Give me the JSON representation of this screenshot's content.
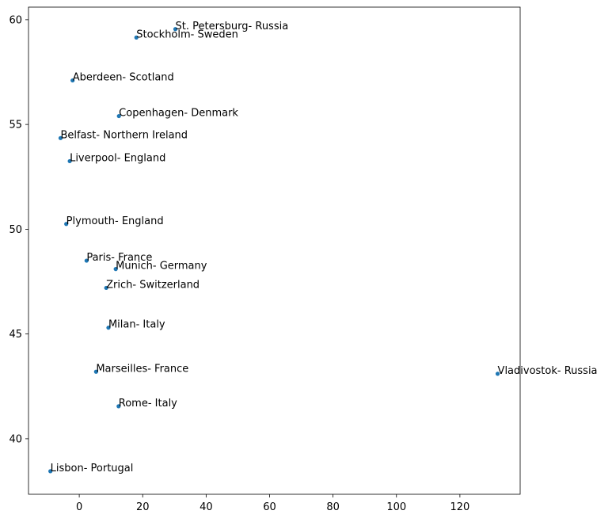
{
  "chart_data": {
    "type": "scatter",
    "title": "",
    "xlabel": "",
    "ylabel": "",
    "xlim": [
      -16,
      139
    ],
    "ylim": [
      37.35,
      60.6
    ],
    "xticks": [
      0,
      20,
      40,
      60,
      80,
      100,
      120
    ],
    "yticks": [
      40,
      45,
      50,
      55,
      60
    ],
    "grid": false,
    "legend": false,
    "marker_color": "#1f77b4",
    "points": [
      {
        "label": "St. Petersburg- Russia",
        "x": 30.3,
        "y": 59.55
      },
      {
        "label": "Stockholm- Sweden",
        "x": 18.0,
        "y": 59.15
      },
      {
        "label": "Aberdeen- Scotland",
        "x": -2.1,
        "y": 57.1
      },
      {
        "label": "Copenhagen- Denmark",
        "x": 12.5,
        "y": 55.4
      },
      {
        "label": "Belfast- Northern Ireland",
        "x": -5.9,
        "y": 54.35
      },
      {
        "label": "Liverpool- England",
        "x": -3.0,
        "y": 53.25
      },
      {
        "label": "Plymouth- England",
        "x": -4.1,
        "y": 50.25
      },
      {
        "label": "Paris- France",
        "x": 2.3,
        "y": 48.5
      },
      {
        "label": "Munich- Germany",
        "x": 11.5,
        "y": 48.1
      },
      {
        "label": "Zrich- Switzerland",
        "x": 8.5,
        "y": 47.2
      },
      {
        "label": "Milan- Italy",
        "x": 9.2,
        "y": 45.3
      },
      {
        "label": "Marseilles- France",
        "x": 5.3,
        "y": 43.2
      },
      {
        "label": "Vladivostok- Russia",
        "x": 131.9,
        "y": 43.1
      },
      {
        "label": "Rome- Italy",
        "x": 12.4,
        "y": 41.55
      },
      {
        "label": "Lisbon- Portugal",
        "x": -9.1,
        "y": 38.45
      }
    ]
  }
}
